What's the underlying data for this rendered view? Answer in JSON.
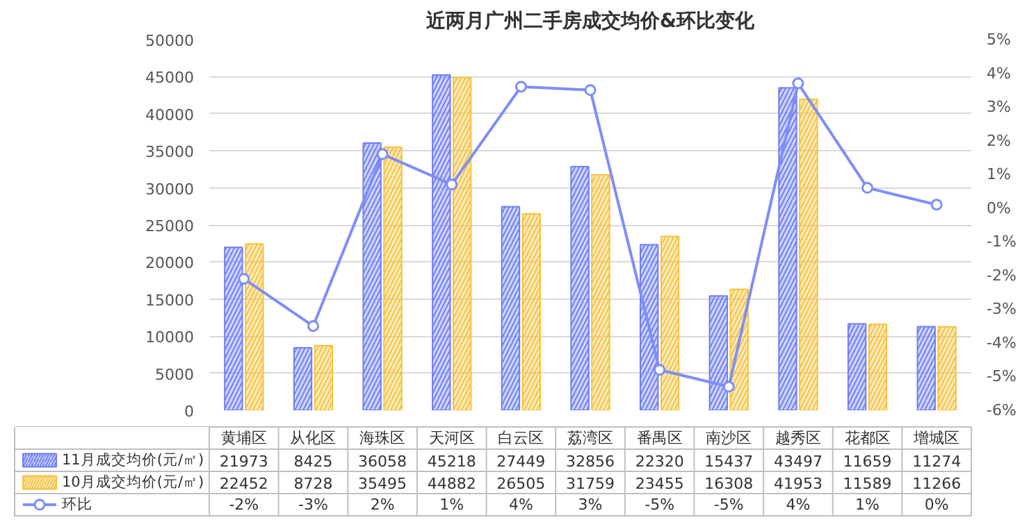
{
  "chart_data": {
    "type": "bar",
    "title": "近两月广州二手房成交均价&环比变化",
    "categories": [
      "黄埔区",
      "从化区",
      "海珠区",
      "天河区",
      "白云区",
      "荔湾区",
      "番禺区",
      "南沙区",
      "越秀区",
      "花都区",
      "增城区"
    ],
    "series": [
      {
        "name": "11月成交均价(元/㎡)",
        "color": "#6f7ff5",
        "values": [
          21973,
          8425,
          36058,
          45218,
          27449,
          32856,
          22320,
          15437,
          43497,
          11659,
          11274
        ]
      },
      {
        "name": "10月成交均价(元/㎡)",
        "color": "#f5c240",
        "values": [
          22452,
          8728,
          35495,
          44882,
          26505,
          31759,
          23455,
          16308,
          41953,
          11589,
          11266
        ]
      },
      {
        "name": "环比",
        "type": "line",
        "axis": "y2",
        "color": "#7d8ef8",
        "marker": "circle",
        "values": [
          -2.1,
          -3.5,
          1.6,
          0.7,
          3.6,
          3.5,
          -4.8,
          -5.3,
          3.7,
          0.6,
          0.1
        ],
        "value_labels": [
          "-2%",
          "-3%",
          "2%",
          "1%",
          "4%",
          "3%",
          "-5%",
          "-5%",
          "4%",
          "1%",
          "0%"
        ]
      }
    ],
    "ylim": [
      0,
      50000
    ],
    "yticks": [
      0,
      5000,
      10000,
      15000,
      20000,
      25000,
      30000,
      35000,
      40000,
      45000,
      50000
    ],
    "y2lim": [
      -6,
      5
    ],
    "y2ticks": [
      {
        "value": -6,
        "label": "-6%"
      },
      {
        "value": -5,
        "label": "-5%"
      },
      {
        "value": -4,
        "label": "-4%"
      },
      {
        "value": -3,
        "label": "-3%"
      },
      {
        "value": -2,
        "label": "-2%"
      },
      {
        "value": -1,
        "label": "-1%"
      },
      {
        "value": 0,
        "label": "0%"
      },
      {
        "value": 1,
        "label": "1%"
      },
      {
        "value": 2,
        "label": "2%"
      },
      {
        "value": 3,
        "label": "3%"
      },
      {
        "value": 4,
        "label": "4%"
      },
      {
        "value": 5,
        "label": "5%"
      }
    ],
    "grid": "y",
    "legend": "bottom",
    "data_labels": true
  }
}
